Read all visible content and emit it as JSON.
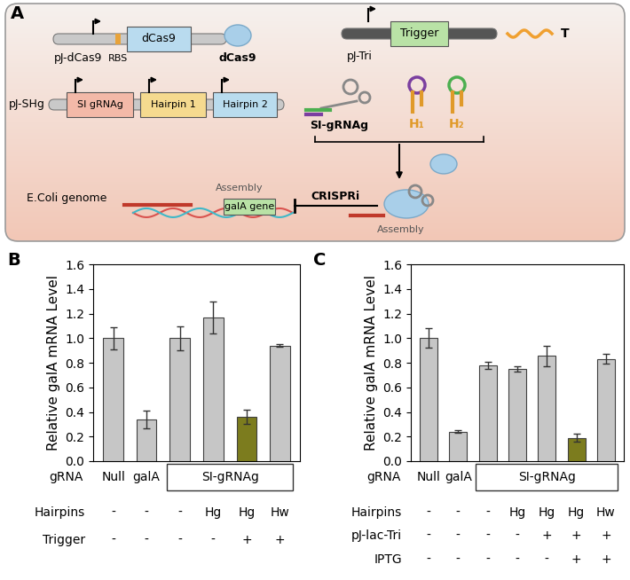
{
  "diagram": {
    "panel": "A",
    "plasmids": [
      {
        "name": "pJ-dCas9",
        "parts": [
          "RBS",
          "dCas9"
        ]
      },
      {
        "name": "pJ-Tri",
        "parts": [
          "Trigger"
        ]
      },
      {
        "name": "pJ-SHg",
        "parts": [
          "SI gRNAg",
          "Hairpin 1",
          "Hairpin 2"
        ]
      }
    ],
    "products": {
      "dcas9": "dCas9",
      "trigger": "T",
      "sigrna": "SI-gRNAg",
      "h1": "H₁",
      "h2": "H₂"
    },
    "genome": {
      "label": "E.Coli genome",
      "gene": "galA gene",
      "assembly": "Assembly",
      "repression": "CRISPRi"
    }
  },
  "chart_data": [
    {
      "type": "bar",
      "panel": "B",
      "y_label": "Relative galA mRNA Level",
      "category_title": "gRNA",
      "categories": [
        "Null",
        "galA",
        null,
        null,
        null,
        null
      ],
      "group": {
        "label": "SI-gRNAg",
        "from": 2,
        "to": 5
      },
      "values": [
        1.0,
        0.34,
        1.0,
        1.17,
        0.36,
        0.94
      ],
      "errors": [
        0.09,
        0.07,
        0.1,
        0.13,
        0.06,
        0.01
      ],
      "colors": [
        "#c6c6c6",
        "#c6c6c6",
        "#c6c6c6",
        "#c6c6c6",
        "#7c7c1e",
        "#c6c6c6"
      ],
      "rows": [
        {
          "name": "Hairpins",
          "values": [
            "-",
            "-",
            "-",
            "Hg",
            "Hg",
            "Hw"
          ]
        },
        {
          "name": "Trigger",
          "values": [
            "-",
            "-",
            "-",
            "-",
            "+",
            "+"
          ]
        }
      ],
      "ylim": [
        0,
        1.6
      ],
      "yticks": [
        {
          "value": 0,
          "label": "0.0"
        },
        0.2,
        0.4,
        0.6,
        0.8,
        {
          "value": 1,
          "label": "1.0"
        },
        1.2,
        1.4,
        1.6
      ]
    },
    {
      "type": "bar",
      "panel": "C",
      "y_label": "Relative galA mRNA Level",
      "category_title": "gRNA",
      "categories": [
        "Null",
        "galA",
        null,
        null,
        null,
        null,
        null
      ],
      "group": {
        "label": "SI-gRNAg",
        "from": 2,
        "to": 6
      },
      "values": [
        1.0,
        0.24,
        0.78,
        0.75,
        0.855,
        0.19,
        0.83
      ],
      "errors": [
        0.08,
        0.01,
        0.03,
        0.02,
        0.085,
        0.03,
        0.04
      ],
      "colors": [
        "#c6c6c6",
        "#c6c6c6",
        "#c6c6c6",
        "#c6c6c6",
        "#c6c6c6",
        "#7c7c1e",
        "#c6c6c6"
      ],
      "rows": [
        {
          "name": "Hairpins",
          "values": [
            "-",
            "-",
            "-",
            "Hg",
            "Hg",
            "Hg",
            "Hw"
          ]
        },
        {
          "name": "pJ-lac-Tri",
          "values": [
            "-",
            "-",
            "-",
            "-",
            "+",
            "+",
            "+"
          ]
        },
        {
          "name": "IPTG",
          "values": [
            "-",
            "-",
            "-",
            "-",
            "-",
            "+",
            "+"
          ]
        }
      ],
      "ylim": [
        0,
        1.6
      ],
      "yticks": [
        {
          "value": 0,
          "label": "0.0"
        },
        0.2,
        0.4,
        0.6,
        0.8,
        {
          "value": 1,
          "label": "1.0"
        },
        1.2,
        1.4,
        1.6
      ]
    }
  ]
}
